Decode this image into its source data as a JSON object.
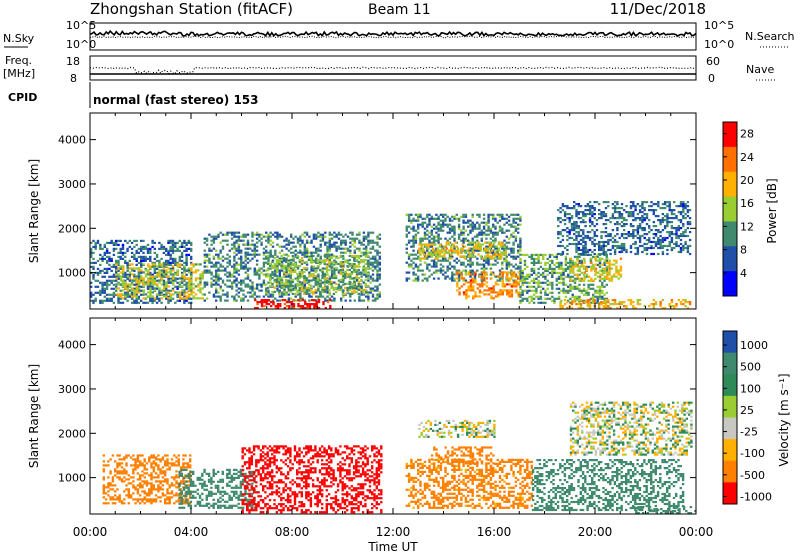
{
  "header": {
    "title": "Zhongshan Station (fitACF)",
    "beam": "Beam 11",
    "date": "11/Dec/2018"
  },
  "noise_panel": {
    "left_label": "N.Sky",
    "right_label": "N.Search",
    "left_ticks": [
      "10^5",
      "10^0"
    ],
    "right_ticks": [
      "10^5",
      "10^0"
    ]
  },
  "freq_panel": {
    "left_label_1": "Freq.",
    "left_label_2": "[MHz]",
    "right_label": "Nave",
    "left_ticks": [
      "18",
      "8"
    ],
    "right_ticks": [
      "60",
      "0"
    ]
  },
  "cpid": {
    "label": "CPID",
    "mode": "normal (fast stereo) 153"
  },
  "x_axis": {
    "label": "Time UT",
    "ticks": [
      "00:00",
      "04:00",
      "08:00",
      "12:00",
      "16:00",
      "20:00",
      "00:00"
    ]
  },
  "colors": {
    "power": [
      "#0000ff",
      "#1f4fa8",
      "#3f8a6e",
      "#9acd32",
      "#ffb000",
      "#ff7000",
      "#ff0000"
    ],
    "velocity": [
      "#1f4fa8",
      "#3f8a6e",
      "#2e8b57",
      "#9acd32",
      "#c8c8c0",
      "#ffb000",
      "#ff8000",
      "#ff0000"
    ]
  },
  "chart_data": [
    {
      "type": "heatmap",
      "panel": "power",
      "ylabel": "Slant Range [km]",
      "y_ticks": [
        "1000",
        "2000",
        "3000",
        "4000"
      ],
      "ylim": [
        180,
        4600
      ],
      "xlim": [
        0,
        24
      ],
      "colorbar_label": "Power [dB]",
      "colorbar_ticks": [
        "4",
        "8",
        "12",
        "16",
        "20",
        "24",
        "28"
      ],
      "colorbar_range": [
        0,
        30
      ],
      "regions": [
        {
          "t0": 0.0,
          "t1": 4.0,
          "r0": 300,
          "r1": 1700,
          "v": 8
        },
        {
          "t0": 1.0,
          "t1": 4.5,
          "r0": 400,
          "r1": 1200,
          "v": 16
        },
        {
          "t0": 4.5,
          "t1": 11.5,
          "r0": 350,
          "r1": 1900,
          "v": 10
        },
        {
          "t0": 6.5,
          "t1": 9.5,
          "r0": 180,
          "r1": 400,
          "v": 28
        },
        {
          "t0": 7.0,
          "t1": 11.0,
          "r0": 500,
          "r1": 1400,
          "v": 14
        },
        {
          "t0": 12.5,
          "t1": 17.0,
          "r0": 800,
          "r1": 2300,
          "v": 10
        },
        {
          "t0": 13.0,
          "t1": 16.5,
          "r0": 1300,
          "r1": 1700,
          "v": 18
        },
        {
          "t0": 14.5,
          "t1": 17.0,
          "r0": 400,
          "r1": 1000,
          "v": 22
        },
        {
          "t0": 17.0,
          "t1": 20.5,
          "r0": 300,
          "r1": 1400,
          "v": 12
        },
        {
          "t0": 19.0,
          "t1": 21.0,
          "r0": 800,
          "r1": 1300,
          "v": 18
        },
        {
          "t0": 18.5,
          "t1": 23.8,
          "r0": 1400,
          "r1": 2600,
          "v": 8
        },
        {
          "t0": 18.5,
          "t1": 23.8,
          "r0": 180,
          "r1": 400,
          "v": 20
        }
      ]
    },
    {
      "type": "heatmap",
      "panel": "velocity",
      "ylabel": "Slant Range [km]",
      "y_ticks": [
        "1000",
        "2000",
        "3000",
        "4000"
      ],
      "ylim": [
        180,
        4600
      ],
      "xlim": [
        0,
        24
      ],
      "colorbar_label": "Velocity [m s⁻¹]",
      "colorbar_ticks": [
        "1000",
        "500",
        "100",
        "25",
        "-25",
        "-100",
        "-500",
        "-1000"
      ],
      "regions": [
        {
          "t0": 0.5,
          "t1": 4.0,
          "r0": 400,
          "r1": 1500,
          "v": -300
        },
        {
          "t0": 3.5,
          "t1": 6.5,
          "r0": 300,
          "r1": 1200,
          "v": 300
        },
        {
          "t0": 6.0,
          "t1": 11.5,
          "r0": 200,
          "r1": 1700,
          "v": -700
        },
        {
          "t0": 12.5,
          "t1": 17.5,
          "r0": 300,
          "r1": 1400,
          "v": -150
        },
        {
          "t0": 13.5,
          "t1": 16.0,
          "r0": 1300,
          "r1": 1700,
          "v": -300
        },
        {
          "t0": 13.0,
          "t1": 16.0,
          "r0": 1900,
          "r1": 2300,
          "v": 0
        },
        {
          "t0": 17.5,
          "t1": 23.5,
          "r0": 250,
          "r1": 1400,
          "v": 300
        },
        {
          "t0": 19.0,
          "t1": 23.8,
          "r0": 1500,
          "r1": 2700,
          "v": 0
        },
        {
          "t0": 21.5,
          "t1": 24.0,
          "r0": 180,
          "r1": 350,
          "v": 150
        }
      ]
    }
  ]
}
